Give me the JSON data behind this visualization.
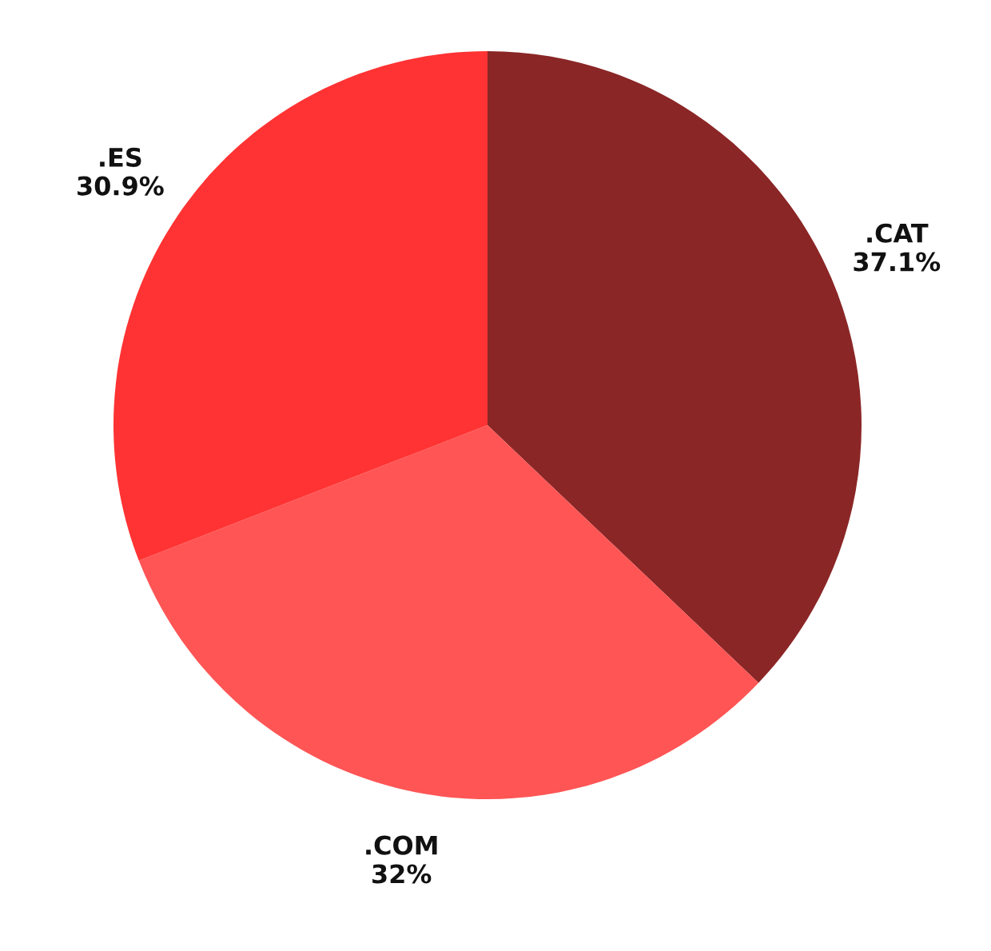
{
  "chart_data": {
    "type": "pie",
    "categories": [
      ".CAT",
      ".COM",
      ".ES"
    ],
    "values": [
      37.1,
      32,
      30.9
    ],
    "value_labels": [
      "37.1%",
      "32%",
      "30.9%"
    ],
    "colors": [
      "#8b2626",
      "#ff5555",
      "#ff3333"
    ],
    "legend": false
  }
}
